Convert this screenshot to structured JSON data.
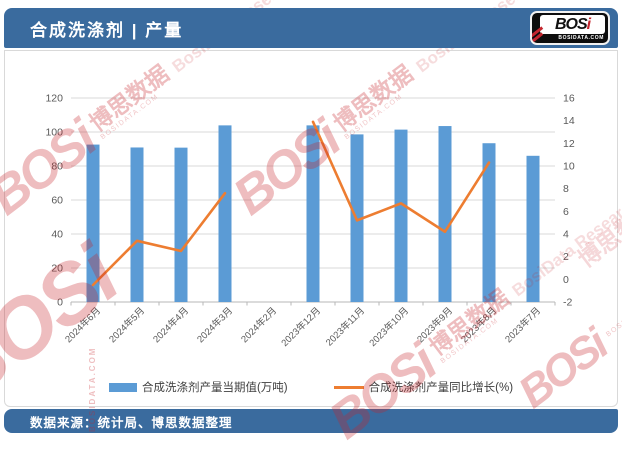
{
  "header": {
    "title": "合成洗涤剂 | 产量",
    "logo": {
      "text_main": "BOS",
      "text_i": "i",
      "domain": "BOSIDATA.COM"
    }
  },
  "footer": {
    "source": "数据来源：统计局、博思数据整理"
  },
  "watermark": {
    "brand": "BOSi",
    "brand_cn": "博思数据",
    "research": "BosiData Research",
    "domain": "BOSIDATA.COM"
  },
  "colors": {
    "header_bar": "#3a6b9e",
    "bar_series": "#5B9BD5",
    "line_series": "#ED7D31",
    "gridline": "#dadada",
    "axis_text": "#595959",
    "watermark": "#C8232C"
  },
  "chart_data": {
    "type": "bar",
    "subtype": "combo-bar-line",
    "categories": [
      "2024年6月",
      "2024年5月",
      "2024年4月",
      "2024年3月",
      "2024年2月",
      "2023年12月",
      "2023年11月",
      "2023年10月",
      "2023年9月",
      "2023年8月",
      "2023年7月"
    ],
    "series": [
      {
        "name": "合成洗涤剂产量当期值(万吨)",
        "type": "bar",
        "axis": "left",
        "color": "#5B9BD5",
        "values": [
          92.6,
          90.9,
          90.8,
          103.9,
          null,
          103.9,
          98.6,
          101.4,
          103.5,
          93.4,
          86.0
        ]
      },
      {
        "name": "合成洗涤剂产量同比增长(%)",
        "type": "line",
        "axis": "right",
        "color": "#ED7D31",
        "values": [
          -0.5,
          3.4,
          2.5,
          7.6,
          null,
          13.9,
          5.2,
          6.7,
          4.2,
          10.3,
          null
        ]
      }
    ],
    "left_axis": {
      "min": 0,
      "max": 120,
      "step": 20,
      "ticks": [
        0,
        20,
        40,
        60,
        80,
        100,
        120
      ]
    },
    "right_axis": {
      "min": -2,
      "max": 16,
      "step": 2,
      "ticks": [
        -2,
        0,
        2,
        4,
        6,
        8,
        10,
        12,
        14,
        16
      ]
    },
    "grid": true,
    "legend_position": "bottom",
    "x_label_rotation": -45
  }
}
